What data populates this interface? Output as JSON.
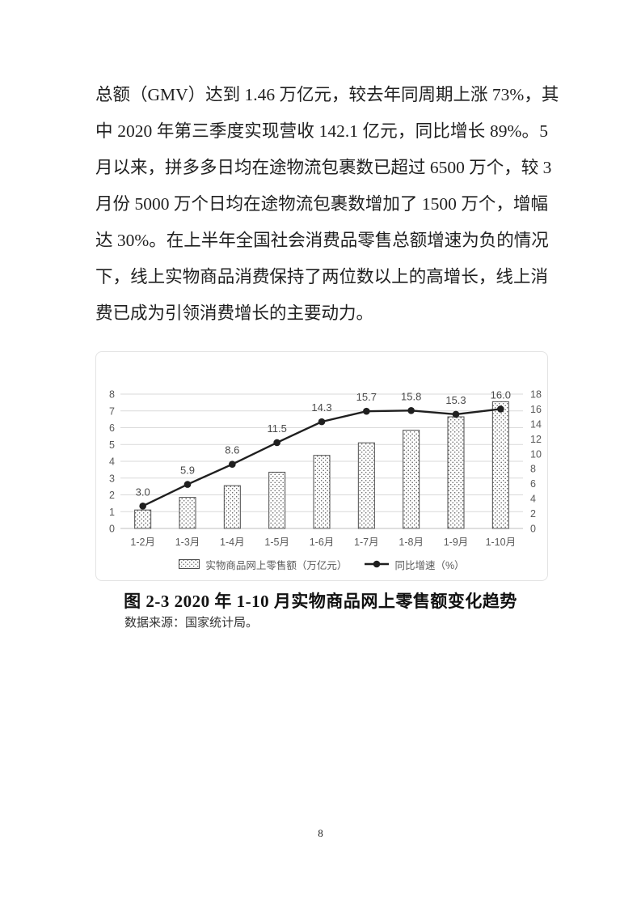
{
  "page": {
    "number": "8"
  },
  "body_text": {
    "lines": [
      "总额（GMV）达到 1.46 万亿元，较去年同周期上涨 73%，其",
      "中 2020 年第三季度实现营收 142.1 亿元，同比增长 89%。5",
      "月以来，拼多多日均在途物流包裹数已超过 6500 万个，较 3",
      "月份 5000 万个日均在途物流包裹数增加了 1500 万个，增幅",
      "达 30%。在上半年全国社会消费品零售总额增速为负的情况",
      "下，线上实物商品消费保持了两位数以上的高增长，线上消",
      "费已成为引领消费增长的主要动力。"
    ]
  },
  "figure": {
    "caption": "图 2-3 2020 年 1-10 月实物商品网上零售额变化趋势",
    "source_note": "数据来源：国家统计局。"
  },
  "chart_data": {
    "type": "combo",
    "title": "",
    "categories": [
      "1-2月",
      "1-3月",
      "1-4月",
      "1-5月",
      "1-6月",
      "1-7月",
      "1-8月",
      "1-9月",
      "1-10月"
    ],
    "series": [
      {
        "name": "实物商品网上零售额（万亿元）",
        "type": "bar",
        "axis": "left",
        "fill": "dotted-pattern",
        "values": [
          1.1,
          1.85,
          2.55,
          3.35,
          4.35,
          5.1,
          5.85,
          6.65,
          7.55
        ]
      },
      {
        "name": "同比增速（%）",
        "type": "line",
        "axis": "right",
        "marker": "filled-circle",
        "values": [
          3.0,
          5.9,
          8.6,
          11.5,
          14.3,
          15.7,
          15.8,
          15.3,
          16.0
        ],
        "labels": [
          "3.0",
          "5.9",
          "8.6",
          "11.5",
          "14.3",
          "15.7",
          "15.8",
          "15.3",
          "16.0"
        ]
      }
    ],
    "left_axis": {
      "min": 0,
      "max": 8,
      "ticks": [
        "0",
        "1",
        "2",
        "3",
        "4",
        "5",
        "6",
        "7",
        "8"
      ]
    },
    "right_axis": {
      "min": 0,
      "max": 18,
      "ticks": [
        "0",
        "2",
        "4",
        "6",
        "8",
        "10",
        "12",
        "14",
        "16",
        "18"
      ]
    },
    "grid": true,
    "legend_position": "bottom",
    "colors": {
      "grid": "#d9d9d9",
      "baseline": "#bfbfbf",
      "axis_text": "#595959",
      "bar_stroke": "#4d4d4d",
      "bar_dot": "#5a5a5a",
      "line": "#1f1f1f",
      "panel_border": "#e3e3e3"
    }
  }
}
